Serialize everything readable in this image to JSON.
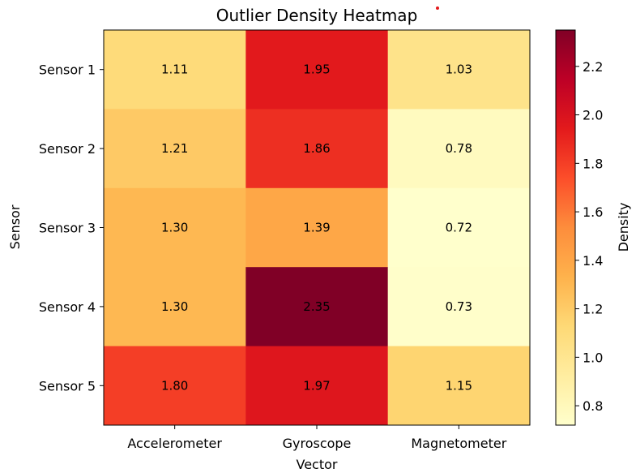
{
  "chart_data": {
    "type": "heatmap",
    "title": "Outlier Density Heatmap",
    "xlabel": "Vector",
    "ylabel": "Sensor",
    "x_categories": [
      "Accelerometer",
      "Gyroscope",
      "Magnetometer"
    ],
    "y_categories": [
      "Sensor 1",
      "Sensor 2",
      "Sensor 3",
      "Sensor 4",
      "Sensor 5"
    ],
    "values": [
      [
        1.11,
        1.95,
        1.03
      ],
      [
        1.21,
        1.86,
        0.78
      ],
      [
        1.3,
        1.39,
        0.72
      ],
      [
        1.3,
        2.35,
        0.73
      ],
      [
        1.8,
        1.97,
        1.15
      ]
    ],
    "value_labels": [
      [
        "1.11",
        "1.95",
        "1.03"
      ],
      [
        "1.21",
        "1.86",
        "0.78"
      ],
      [
        "1.30",
        "1.39",
        "0.72"
      ],
      [
        "1.30",
        "2.35",
        "0.73"
      ],
      [
        "1.80",
        "1.97",
        "1.15"
      ]
    ],
    "colorscale": "YlOrRd",
    "colorbar": {
      "label": "Density",
      "range": [
        0.72,
        2.35
      ],
      "ticks": [
        0.8,
        1.0,
        1.2,
        1.4,
        1.6,
        1.8,
        2.0,
        2.2
      ],
      "tick_labels": [
        "0.8",
        "1.0",
        "1.2",
        "1.4",
        "1.6",
        "1.8",
        "2.0",
        "2.2"
      ]
    },
    "grid": false
  },
  "colors": {
    "ylorrd_stops": [
      "#ffffcc",
      "#ffeda0",
      "#fed976",
      "#feb24c",
      "#fd8d3c",
      "#fc4e2a",
      "#e31a1c",
      "#bd0026",
      "#800026"
    ],
    "annotation_dot": "#e31a1c"
  }
}
